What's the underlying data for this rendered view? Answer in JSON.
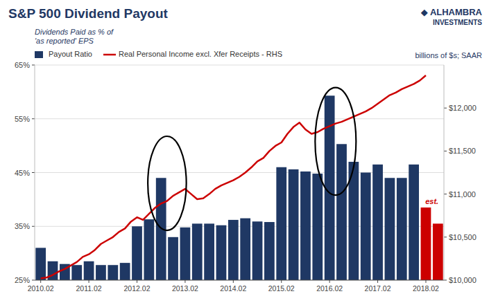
{
  "chart_data": {
    "type": "bar",
    "title": "S&P 500 Dividend Payout",
    "y_label": [
      "Dividends Paid as % of",
      "'as reported' EPS"
    ],
    "y2_label": "billions of $s; SAAR",
    "annotations": [
      "est.",
      "◆ ALHAMBRA",
      "INVESTMENTS"
    ],
    "categories": [
      "2010.02",
      null,
      null,
      null,
      "2011.02",
      null,
      null,
      null,
      "2012.02",
      null,
      null,
      null,
      "2013.02",
      null,
      null,
      null,
      "2014.02",
      null,
      null,
      null,
      "2015.02",
      null,
      null,
      null,
      "2016.02",
      null,
      null,
      null,
      "2017.02",
      null,
      null,
      null,
      "2018.02",
      null
    ],
    "series": [
      {
        "name": "Payout Ratio",
        "type": "bar",
        "color": "#1F3864",
        "colors": [
          "#1F3864",
          "#1F3864",
          "#1F3864",
          "#1F3864",
          "#1F3864",
          "#1F3864",
          "#1F3864",
          "#1F3864",
          "#1F3864",
          "#1F3864",
          "#1F3864",
          "#1F3864",
          "#1F3864",
          "#1F3864",
          "#1F3864",
          "#1F3864",
          "#1F3864",
          "#1F3864",
          "#1F3864",
          "#1F3864",
          "#1F3864",
          "#1F3864",
          "#1F3864",
          "#1F3864",
          "#1F3864",
          "#1F3864",
          "#1F3864",
          "#1F3864",
          "#1F3864",
          "#1F3864",
          "#1F3864",
          "#1F3864",
          "#CC0000",
          "#CC0000"
        ],
        "values": [
          0.31,
          0.285,
          0.28,
          0.278,
          0.285,
          0.278,
          0.278,
          0.282,
          0.35,
          0.363,
          0.44,
          0.33,
          0.348,
          0.355,
          0.355,
          0.352,
          0.362,
          0.365,
          0.359,
          0.358,
          0.46,
          0.456,
          0.452,
          0.448,
          0.593,
          0.503,
          0.47,
          0.45,
          0.465,
          0.44,
          0.44,
          0.465,
          0.385,
          0.355
        ]
      },
      {
        "name": "Real Personal Income excl. Xfer Receipts - RHS",
        "type": "line",
        "axis": "y2",
        "color": "#CC0000",
        "x": [
          0,
          0.5,
          1,
          1.5,
          2,
          2.5,
          3,
          3.5,
          4,
          4.5,
          5,
          5.5,
          6,
          6.5,
          7,
          7.5,
          8,
          8.5,
          9,
          9.5,
          10,
          10.5,
          11,
          11.5,
          12,
          12.5,
          13,
          13.5,
          14,
          14.5,
          15,
          15.5,
          16,
          16.5,
          17,
          17.5,
          18,
          18.5,
          19,
          19.5,
          20,
          20.5,
          21,
          21.5,
          22,
          22.5,
          23,
          23.5,
          24,
          24.5,
          25,
          25.5,
          26,
          26.5,
          27,
          27.5,
          28,
          28.5,
          29,
          29.5,
          30,
          30.5,
          31,
          31.5,
          32
        ],
        "values": [
          10020,
          10030,
          10060,
          10100,
          10130,
          10170,
          10210,
          10270,
          10300,
          10350,
          10420,
          10460,
          10500,
          10560,
          10600,
          10680,
          10730,
          10700,
          10770,
          10840,
          10890,
          10920,
          10980,
          11020,
          11060,
          11000,
          10940,
          10950,
          11000,
          11060,
          11100,
          11130,
          11160,
          11200,
          11250,
          11310,
          11380,
          11420,
          11500,
          11560,
          11600,
          11700,
          11780,
          11830,
          11750,
          11700,
          11720,
          11760,
          11790,
          11820,
          11840,
          11870,
          11900,
          11930,
          11960,
          12000,
          12050,
          12100,
          12150,
          12180,
          12220,
          12250,
          12280,
          12320,
          12380
        ]
      }
    ],
    "highlights": [
      {
        "x": 10.5,
        "y": 0.43,
        "width": 3.2,
        "height": 0.175
      },
      {
        "x": 24.5,
        "y": 0.508,
        "width": 3.4,
        "height": 0.2
      }
    ],
    "ylim": [
      0.25,
      0.65
    ],
    "yticks": [
      {
        "value": 0.25,
        "label": "25%"
      },
      {
        "value": 0.35,
        "label": "35%"
      },
      {
        "value": 0.45,
        "label": "45%"
      },
      {
        "value": 0.55,
        "label": "55%"
      },
      {
        "value": 0.65,
        "label": "65%"
      }
    ],
    "y2lim": [
      10000,
      12500
    ],
    "y2ticks": [
      {
        "value": 10000,
        "label": "$10,000"
      },
      {
        "value": 10500,
        "label": "$10,500"
      },
      {
        "value": 11000,
        "label": "$11,000"
      },
      {
        "value": 11500,
        "label": "$11,500"
      },
      {
        "value": 12000,
        "label": "$12,000"
      }
    ],
    "grid": true,
    "legend": "upper left"
  }
}
